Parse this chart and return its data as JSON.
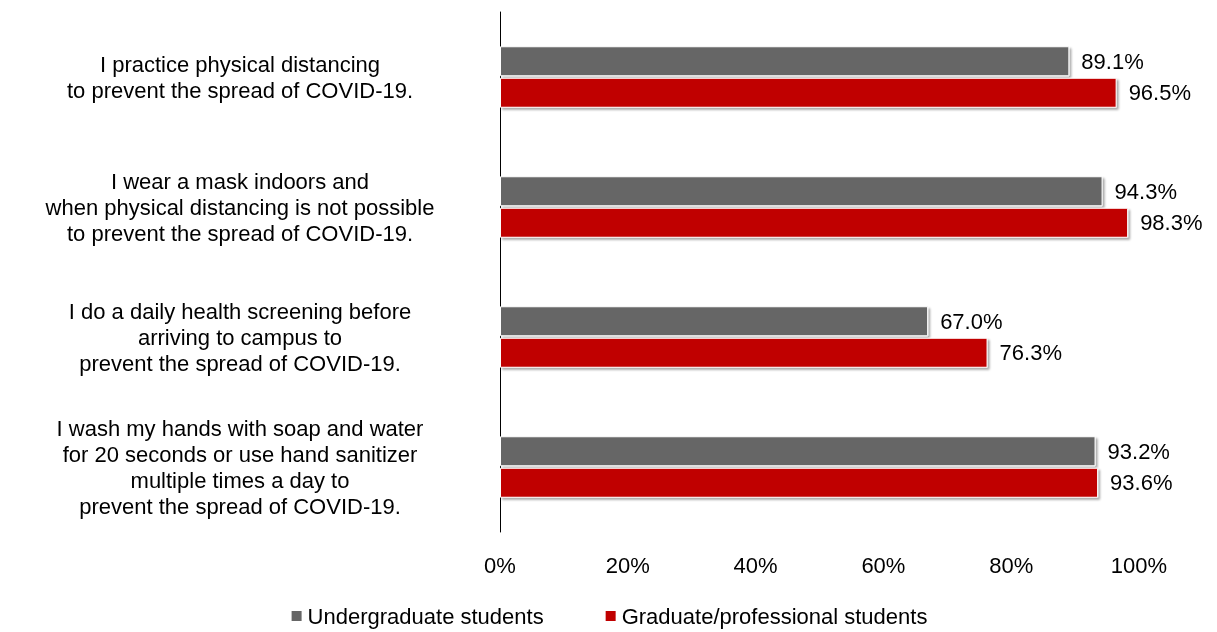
{
  "chart_data": {
    "type": "bar",
    "orientation": "horizontal",
    "categories": [
      "I practice physical distancing\nto prevent the spread of COVID-19.",
      "I wear a mask indoors and\nwhen physical distancing is not possible\nto prevent the spread of COVID-19.",
      "I do a daily health screening before\narriving to campus to\nprevent the spread of COVID-19.",
      "I wash my hands with soap and water\nfor 20 seconds or use hand sanitizer\nmultiple times a day to\nprevent the spread of COVID-19."
    ],
    "series": [
      {
        "name": "Undergraduate students",
        "color": "#666666",
        "values": [
          89.1,
          94.3,
          67.0,
          93.2
        ],
        "value_labels": [
          "89.1%",
          "94.3%",
          "67.0%",
          "93.2%"
        ]
      },
      {
        "name": "Graduate/professional students",
        "color": "#c00000",
        "values": [
          96.5,
          98.3,
          76.3,
          93.6
        ],
        "value_labels": [
          "96.5%",
          "98.3%",
          "76.3%",
          "93.6%"
        ]
      }
    ],
    "xlim": [
      0,
      100
    ],
    "xticks": [
      {
        "value": 0,
        "label": "0%"
      },
      {
        "value": 20,
        "label": "20%"
      },
      {
        "value": 40,
        "label": "40%"
      },
      {
        "value": 60,
        "label": "60%"
      },
      {
        "value": 80,
        "label": "80%"
      },
      {
        "value": 100,
        "label": "100%"
      }
    ],
    "grid": false,
    "legend": "bottom"
  }
}
